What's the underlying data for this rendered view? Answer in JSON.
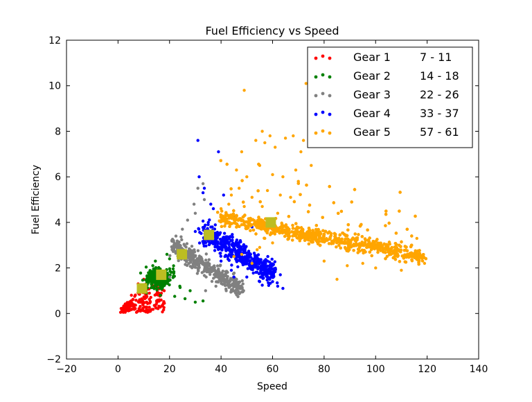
{
  "chart_data": {
    "type": "scatter",
    "title": "Fuel Efficiency vs Speed",
    "xlabel": "Speed",
    "ylabel": "Fuel Efficiency",
    "xlim": [
      -20,
      140
    ],
    "ylim": [
      -2,
      12
    ],
    "xticks": [
      "−20",
      "0",
      "20",
      "40",
      "60",
      "80",
      "100",
      "120",
      "140"
    ],
    "yticks": [
      "−2",
      "0",
      "2",
      "4",
      "6",
      "8",
      "10",
      "12"
    ],
    "xtick_values": [
      -20,
      0,
      20,
      40,
      60,
      80,
      100,
      120,
      140
    ],
    "ytick_values": [
      -2,
      0,
      2,
      4,
      6,
      8,
      10,
      12
    ],
    "grid": false,
    "legend_position": "top-right",
    "series": [
      {
        "name": "Gear 1",
        "range": "7 - 11",
        "color": "#ff0000",
        "centroid": [
          9.3,
          1.1
        ],
        "cluster": {
          "x_range": [
            1,
            18
          ],
          "y_range": [
            0.05,
            1.6
          ],
          "shape": "triangle",
          "n": 180
        },
        "points": [
          [
            1.0,
            0.05
          ],
          [
            1.5,
            0.1
          ],
          [
            2.2,
            0.15
          ],
          [
            3.0,
            0.3
          ],
          [
            5.2,
            0.8
          ],
          [
            7.8,
            1.3
          ],
          [
            10.0,
            1.5
          ],
          [
            13.0,
            1.6
          ],
          [
            16.0,
            0.6
          ],
          [
            18.0,
            0.45
          ],
          [
            12.5,
            0.5
          ],
          [
            6.5,
            0.35
          ]
        ]
      },
      {
        "name": "Gear 2",
        "range": "14 - 18",
        "color": "#008000",
        "centroid": [
          16.8,
          1.7
        ],
        "cluster": {
          "x_range": [
            9,
            34
          ],
          "y_range": [
            0.6,
            2.6
          ],
          "shape": "blob",
          "n": 350
        },
        "points": [
          [
            11.0,
            0.9
          ],
          [
            12.0,
            1.6
          ],
          [
            13.5,
            2.1
          ],
          [
            14.5,
            2.3
          ],
          [
            20.0,
            2.4
          ],
          [
            16.5,
            0.8
          ],
          [
            22.0,
            0.75
          ],
          [
            26.0,
            0.65
          ],
          [
            30.0,
            0.5
          ],
          [
            33.0,
            0.55
          ],
          [
            28.0,
            1.0
          ],
          [
            24.0,
            1.2
          ],
          [
            19.0,
            2.6
          ]
        ]
      },
      {
        "name": "Gear 3",
        "range": "22 - 26",
        "color": "#808080",
        "centroid": [
          24.8,
          2.6
        ],
        "cluster": {
          "x_range": [
            20,
            50
          ],
          "y_range": [
            0.8,
            4.2
          ],
          "shape": "band",
          "n": 420
        },
        "points": [
          [
            20.0,
            1.6
          ],
          [
            21.0,
            2.8
          ],
          [
            22.5,
            3.4
          ],
          [
            25.0,
            3.7
          ],
          [
            27.0,
            4.1
          ],
          [
            29.5,
            4.8
          ],
          [
            31.0,
            5.5
          ],
          [
            33.0,
            5.7
          ],
          [
            33.5,
            5.0
          ],
          [
            30.0,
            4.4
          ],
          [
            34.0,
            1.0
          ],
          [
            38.0,
            1.2
          ],
          [
            42.0,
            1.0
          ],
          [
            44.0,
            1.0
          ],
          [
            46.0,
            0.9
          ],
          [
            48.5,
            1.3
          ],
          [
            36.0,
            2.0
          ],
          [
            40.0,
            1.4
          ]
        ]
      },
      {
        "name": "Gear 4",
        "range": "33 - 37",
        "color": "#0000ff",
        "centroid": [
          35.3,
          3.45
        ],
        "cluster": {
          "x_range": [
            28,
            65
          ],
          "y_range": [
            1.2,
            5.0
          ],
          "shape": "blob",
          "n": 500
        },
        "points": [
          [
            31.0,
            7.6
          ],
          [
            39.0,
            7.1
          ],
          [
            31.5,
            6.0
          ],
          [
            33.5,
            5.5
          ],
          [
            33.0,
            5.3
          ],
          [
            37.0,
            4.6
          ],
          [
            41.0,
            5.2
          ],
          [
            36.0,
            4.8
          ],
          [
            35.0,
            3.9
          ],
          [
            30.0,
            3.6
          ],
          [
            58.0,
            1.5
          ],
          [
            62.0,
            1.2
          ],
          [
            64.0,
            1.1
          ],
          [
            63.0,
            1.7
          ],
          [
            60.0,
            1.4
          ],
          [
            55.0,
            1.4
          ],
          [
            50.0,
            1.6
          ],
          [
            45.0,
            1.6
          ],
          [
            45.0,
            4.3
          ],
          [
            52.0,
            3.8
          ],
          [
            43.0,
            3.1
          ],
          [
            48.0,
            2.6
          ],
          [
            40.0,
            2.3
          ],
          [
            57.0,
            2.2
          ],
          [
            44.0,
            1.9
          ]
        ]
      },
      {
        "name": "Gear 5",
        "range": "57 - 61",
        "color": "#ffa500",
        "centroid": [
          59.3,
          4.0
        ],
        "cluster": {
          "x_range": [
            38,
            120
          ],
          "y_range": [
            1.0,
            8.0
          ],
          "shape": "band",
          "n": 2200
        },
        "points": [
          [
            49.0,
            9.8
          ],
          [
            73.0,
            10.1
          ],
          [
            77.0,
            9.3
          ],
          [
            56.0,
            8.0
          ],
          [
            53.5,
            7.6
          ],
          [
            59.0,
            7.8
          ],
          [
            57.0,
            7.5
          ],
          [
            61.0,
            7.3
          ],
          [
            65.0,
            7.7
          ],
          [
            68.0,
            7.8
          ],
          [
            72.0,
            7.6
          ],
          [
            71.0,
            7.1
          ],
          [
            48.0,
            7.1
          ],
          [
            46.0,
            6.3
          ],
          [
            50.0,
            6.0
          ],
          [
            55.0,
            6.5
          ],
          [
            60.0,
            6.1
          ],
          [
            64.0,
            6.0
          ],
          [
            75.0,
            6.5
          ],
          [
            70.0,
            5.8
          ],
          [
            47.0,
            5.5
          ],
          [
            44.0,
            5.2
          ],
          [
            52.0,
            5.1
          ],
          [
            58.0,
            5.4
          ],
          [
            63.0,
            5.2
          ],
          [
            67.0,
            5.1
          ],
          [
            69.0,
            6.3
          ],
          [
            40.0,
            4.6
          ],
          [
            43.0,
            4.8
          ],
          [
            49.0,
            4.7
          ],
          [
            56.0,
            4.7
          ],
          [
            62.0,
            4.4
          ],
          [
            45.0,
            2.5
          ],
          [
            52.0,
            2.2
          ],
          [
            60.0,
            3.1
          ],
          [
            55.0,
            2.9
          ],
          [
            48.0,
            2.6
          ],
          [
            54.0,
            2.8
          ],
          [
            57.0,
            3.3
          ],
          [
            110.0,
            1.9
          ],
          [
            100.0,
            2.0
          ],
          [
            106.0,
            2.6
          ],
          [
            118.0,
            2.5
          ],
          [
            119.0,
            2.2
          ],
          [
            114.0,
            3.0
          ],
          [
            116.0,
            3.3
          ],
          [
            89.0,
            2.1
          ],
          [
            95.0,
            2.2
          ],
          [
            85.0,
            1.5
          ],
          [
            80.0,
            2.3
          ]
        ]
      }
    ]
  }
}
